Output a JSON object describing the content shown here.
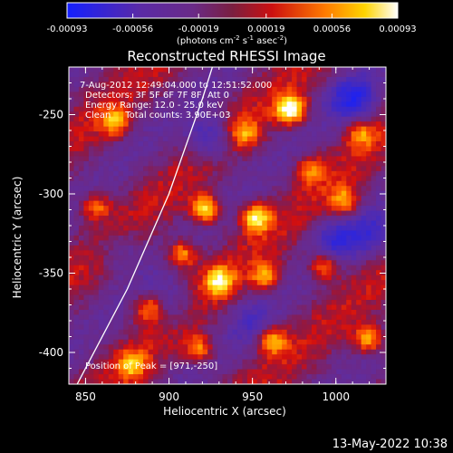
{
  "colorbar": {
    "tick_labels": [
      "-0.00093",
      "-0.00056",
      "-0.00019",
      "0.00019",
      "0.00056",
      "0.00093"
    ],
    "unit_parts": {
      "prefix": "(photons cm",
      "exp1": "-2",
      "mid1": " s",
      "exp2": "-1",
      "mid2": " asec",
      "exp3": "-2",
      "suffix": ")"
    }
  },
  "chart_data": {
    "type": "heatmap",
    "title": "Reconstructed RHESSI Image",
    "xlabel": "Heliocentric X (arcsec)",
    "ylabel": "Heliocentric Y (arcsec)",
    "xlim": [
      840,
      1030
    ],
    "ylim": [
      -420,
      -220
    ],
    "x_ticks": [
      "850",
      "900",
      "950",
      "1000"
    ],
    "y_ticks": [
      "-250",
      "-300",
      "-350",
      "-400"
    ],
    "x_tick_values": [
      850,
      900,
      950,
      1000
    ],
    "y_tick_values": [
      -250,
      -300,
      -350,
      -400
    ],
    "value_range": [
      -0.00093,
      0.00093
    ],
    "colormap": "RHESSI blue-purple-red-yellow-white",
    "limb_points": [
      [
        845,
        -420
      ],
      [
        875,
        -360
      ],
      [
        900,
        -300
      ],
      [
        920,
        -240
      ],
      [
        926,
        -220
      ]
    ],
    "annotations": [
      "7-Aug-2012 12:49:04.000 to 12:51:52.000",
      "Detectors: 3F 5F 6F 7F 8F, Att 0",
      "Energy Range: 12.0 - 25.0 keV",
      "Clean     Total counts: 3.90E+03"
    ],
    "peak_label": "Position of Peak = [971,-250]",
    "blobs": [
      {
        "x": 973,
        "y": -247,
        "amp": 1.0
      },
      {
        "x": 922,
        "y": -310,
        "amp": 0.9
      },
      {
        "x": 952,
        "y": -315,
        "amp": 0.85
      },
      {
        "x": 908,
        "y": -338,
        "amp": 0.7
      },
      {
        "x": 930,
        "y": -355,
        "amp": 0.75
      },
      {
        "x": 888,
        "y": -372,
        "amp": 0.65
      },
      {
        "x": 958,
        "y": -352,
        "amp": 0.6
      },
      {
        "x": 1005,
        "y": -305,
        "amp": 0.6
      },
      {
        "x": 993,
        "y": -345,
        "amp": 0.7
      },
      {
        "x": 1020,
        "y": -392,
        "amp": 0.7
      },
      {
        "x": 962,
        "y": -392,
        "amp": 0.7
      },
      {
        "x": 918,
        "y": -398,
        "amp": 0.6
      },
      {
        "x": 868,
        "y": -255,
        "amp": 0.6
      },
      {
        "x": 856,
        "y": -308,
        "amp": 0.55
      },
      {
        "x": 1015,
        "y": -262,
        "amp": 0.5
      },
      {
        "x": 945,
        "y": -262,
        "amp": 0.55
      },
      {
        "x": 878,
        "y": -408,
        "amp": 0.55
      },
      {
        "x": 985,
        "y": -285,
        "amp": 0.5
      }
    ],
    "negative_regions": [
      {
        "x": 925,
        "y": -265,
        "amp": 0.8
      },
      {
        "x": 1010,
        "y": -240,
        "amp": 0.9
      },
      {
        "x": 1000,
        "y": -330,
        "amp": 0.7
      },
      {
        "x": 900,
        "y": -370,
        "amp": 0.5
      },
      {
        "x": 870,
        "y": -335,
        "amp": 0.4
      },
      {
        "x": 1022,
        "y": -325,
        "amp": 0.6
      },
      {
        "x": 950,
        "y": -382,
        "amp": 0.4
      }
    ]
  },
  "timestamp": "13-May-2022 10:38"
}
